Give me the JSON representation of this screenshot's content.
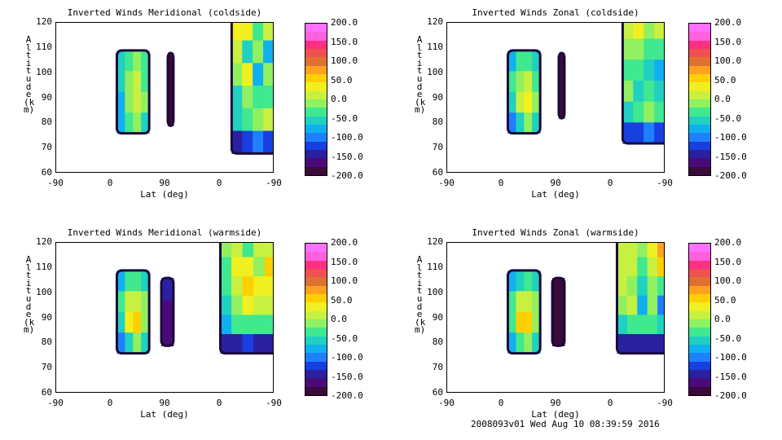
{
  "footer": "2008093v01 Wed Aug 10 08:39:59 2016",
  "chart_data": [
    {
      "type": "heatmap",
      "title": "Inverted Winds Meridional (coldside)",
      "xlabel": "Lat (deg)",
      "ylabel": "Altitude (km)",
      "xticks": [
        "-90",
        "0",
        "90",
        "0",
        "-90"
      ],
      "yticks": [
        "120",
        "110",
        "100",
        "90",
        "80",
        "70",
        "60"
      ],
      "ylim": [
        60,
        120
      ],
      "colorbar_ticks": [
        "200.0",
        "150.0",
        "100.0",
        "50.0",
        "0.0",
        "-50.0",
        "-100.0",
        "-150.0",
        "-200.0"
      ],
      "colorbar_range": [
        -200,
        200
      ],
      "regions": [
        {
          "x": [
            -15,
            25
          ],
          "y": [
            76,
            109
          ],
          "cells": [
            [
              -60,
              -30,
              -20,
              -40
            ],
            [
              -50,
              -10,
              10,
              -30
            ],
            [
              -70,
              -20,
              20,
              -20
            ],
            [
              -80,
              -40,
              -10,
              -50
            ]
          ]
        },
        {
          "x": [
            48,
            55
          ],
          "y": [
            79,
            108
          ],
          "cells": [
            [
              -180
            ],
            [
              -180
            ],
            [
              -180
            ]
          ]
        },
        {
          "x": [
            127,
            205
          ],
          "y": [
            68,
            122
          ],
          "cells": [
            [
              30,
              40,
              -30,
              10,
              -10,
              20
            ],
            [
              10,
              -60,
              -20,
              -70,
              0,
              -40
            ],
            [
              -20,
              40,
              -80,
              -10,
              -50,
              -30
            ],
            [
              -50,
              -10,
              -40,
              -30,
              -20,
              0
            ],
            [
              -60,
              -30,
              -20,
              10,
              20,
              30
            ],
            [
              -150,
              -120,
              -100,
              -120,
              -120,
              -110
            ]
          ]
        }
      ]
    },
    {
      "type": "heatmap",
      "title": "Inverted Winds Zonal (coldside)",
      "xlabel": "Lat (deg)",
      "ylabel": "Altitude (km)",
      "xticks": [
        "-90",
        "0",
        "90",
        "0",
        "-90"
      ],
      "yticks": [
        "120",
        "110",
        "100",
        "90",
        "80",
        "70",
        "60"
      ],
      "ylim": [
        60,
        120
      ],
      "colorbar_ticks": [
        "200.0",
        "150.0",
        "100.0",
        "50.0",
        "0.0",
        "-50.0",
        "-100.0",
        "-150.0",
        "-200.0"
      ],
      "colorbar_range": [
        -200,
        200
      ],
      "regions": [
        {
          "x": [
            -15,
            25
          ],
          "y": [
            76,
            109
          ],
          "cells": [
            [
              -70,
              -40,
              -30,
              -50
            ],
            [
              -40,
              -10,
              10,
              -30
            ],
            [
              -60,
              0,
              40,
              -20
            ],
            [
              -90,
              -50,
              -10,
              -60
            ]
          ]
        },
        {
          "x": [
            48,
            55
          ],
          "y": [
            82,
            108
          ],
          "cells": [
            [
              -180
            ],
            [
              -190
            ],
            [
              -180
            ]
          ]
        },
        {
          "x": [
            127,
            205
          ],
          "y": [
            72,
            122
          ],
          "cells": [
            [
              20,
              40,
              -10,
              0,
              10,
              20
            ],
            [
              -10,
              -20,
              -40,
              -30,
              -50,
              -20
            ],
            [
              -30,
              -40,
              -60,
              -70,
              -90,
              -40
            ],
            [
              -20,
              -50,
              -40,
              -60,
              -80,
              -30
            ],
            [
              -60,
              -40,
              -20,
              -30,
              -50,
              -40
            ],
            [
              -130,
              -120,
              -110,
              -120,
              -130,
              -120
            ]
          ]
        }
      ]
    },
    {
      "type": "heatmap",
      "title": "Inverted Winds Meridional (warmside)",
      "xlabel": "Lat (deg)",
      "ylabel": "Altitude (km)",
      "xticks": [
        "-90",
        "0",
        "90",
        "0",
        "-90"
      ],
      "yticks": [
        "120",
        "110",
        "100",
        "90",
        "80",
        "70",
        "60"
      ],
      "ylim": [
        60,
        120
      ],
      "colorbar_ticks": [
        "200.0",
        "150.0",
        "100.0",
        "50.0",
        "0.0",
        "-50.0",
        "-100.0",
        "-150.0",
        "-200.0"
      ],
      "colorbar_range": [
        -200,
        200
      ],
      "regions": [
        {
          "x": [
            -15,
            25
          ],
          "y": [
            76,
            109
          ],
          "cells": [
            [
              -80,
              -40,
              -30,
              -60
            ],
            [
              -40,
              10,
              20,
              -20
            ],
            [
              -50,
              30,
              50,
              -10
            ],
            [
              -90,
              -50,
              -20,
              -60
            ]
          ]
        },
        {
          "x": [
            40,
            55
          ],
          "y": [
            79,
            106
          ],
          "cells": [
            [
              -150
            ],
            [
              -170
            ],
            [
              -160
            ]
          ]
        },
        {
          "x": [
            113,
            195
          ],
          "y": [
            76,
            122
          ],
          "cells": [
            [
              -20,
              10,
              -30,
              20,
              10,
              -10
            ],
            [
              -30,
              30,
              40,
              -10,
              50,
              -20
            ],
            [
              -40,
              20,
              60,
              40,
              30,
              -30
            ],
            [
              -50,
              -20,
              30,
              20,
              10,
              -40
            ],
            [
              -70,
              -40,
              -30,
              -30,
              -40,
              -50
            ],
            [
              -150,
              -140,
              -130,
              -140,
              -150,
              -150
            ]
          ]
        }
      ]
    },
    {
      "type": "heatmap",
      "title": "Inverted Winds Zonal (warmside)",
      "xlabel": "Lat (deg)",
      "ylabel": "Altitude (km)",
      "xticks": [
        "-90",
        "0",
        "90",
        "0",
        "-90"
      ],
      "yticks": [
        "120",
        "110",
        "100",
        "90",
        "80",
        "70",
        "60"
      ],
      "ylim": [
        60,
        120
      ],
      "colorbar_ticks": [
        "200.0",
        "150.0",
        "100.0",
        "50.0",
        "0.0",
        "-50.0",
        "-100.0",
        "-150.0",
        "-200.0"
      ],
      "colorbar_range": [
        -200,
        200
      ],
      "regions": [
        {
          "x": [
            -15,
            25
          ],
          "y": [
            76,
            109
          ],
          "cells": [
            [
              -80,
              -50,
              -40,
              -60
            ],
            [
              -30,
              10,
              20,
              -20
            ],
            [
              -40,
              50,
              60,
              -10
            ],
            [
              -80,
              -40,
              -10,
              -50
            ]
          ]
        },
        {
          "x": [
            40,
            55
          ],
          "y": [
            79,
            106
          ],
          "cells": [
            [
              -180
            ],
            [
              -180
            ],
            [
              -180
            ]
          ]
        },
        {
          "x": [
            120,
            195
          ],
          "y": [
            76,
            122
          ],
          "cells": [
            [
              10,
              20,
              -10,
              30,
              80,
              60
            ],
            [
              0,
              20,
              -30,
              10,
              60,
              40
            ],
            [
              20,
              -20,
              -60,
              -10,
              -40,
              30
            ],
            [
              -10,
              0,
              -80,
              -20,
              -90,
              20
            ],
            [
              -60,
              -30,
              -40,
              -30,
              -50,
              -40
            ],
            [
              -150,
              -140,
              -140,
              -140,
              -150,
              -150
            ]
          ]
        }
      ]
    }
  ]
}
